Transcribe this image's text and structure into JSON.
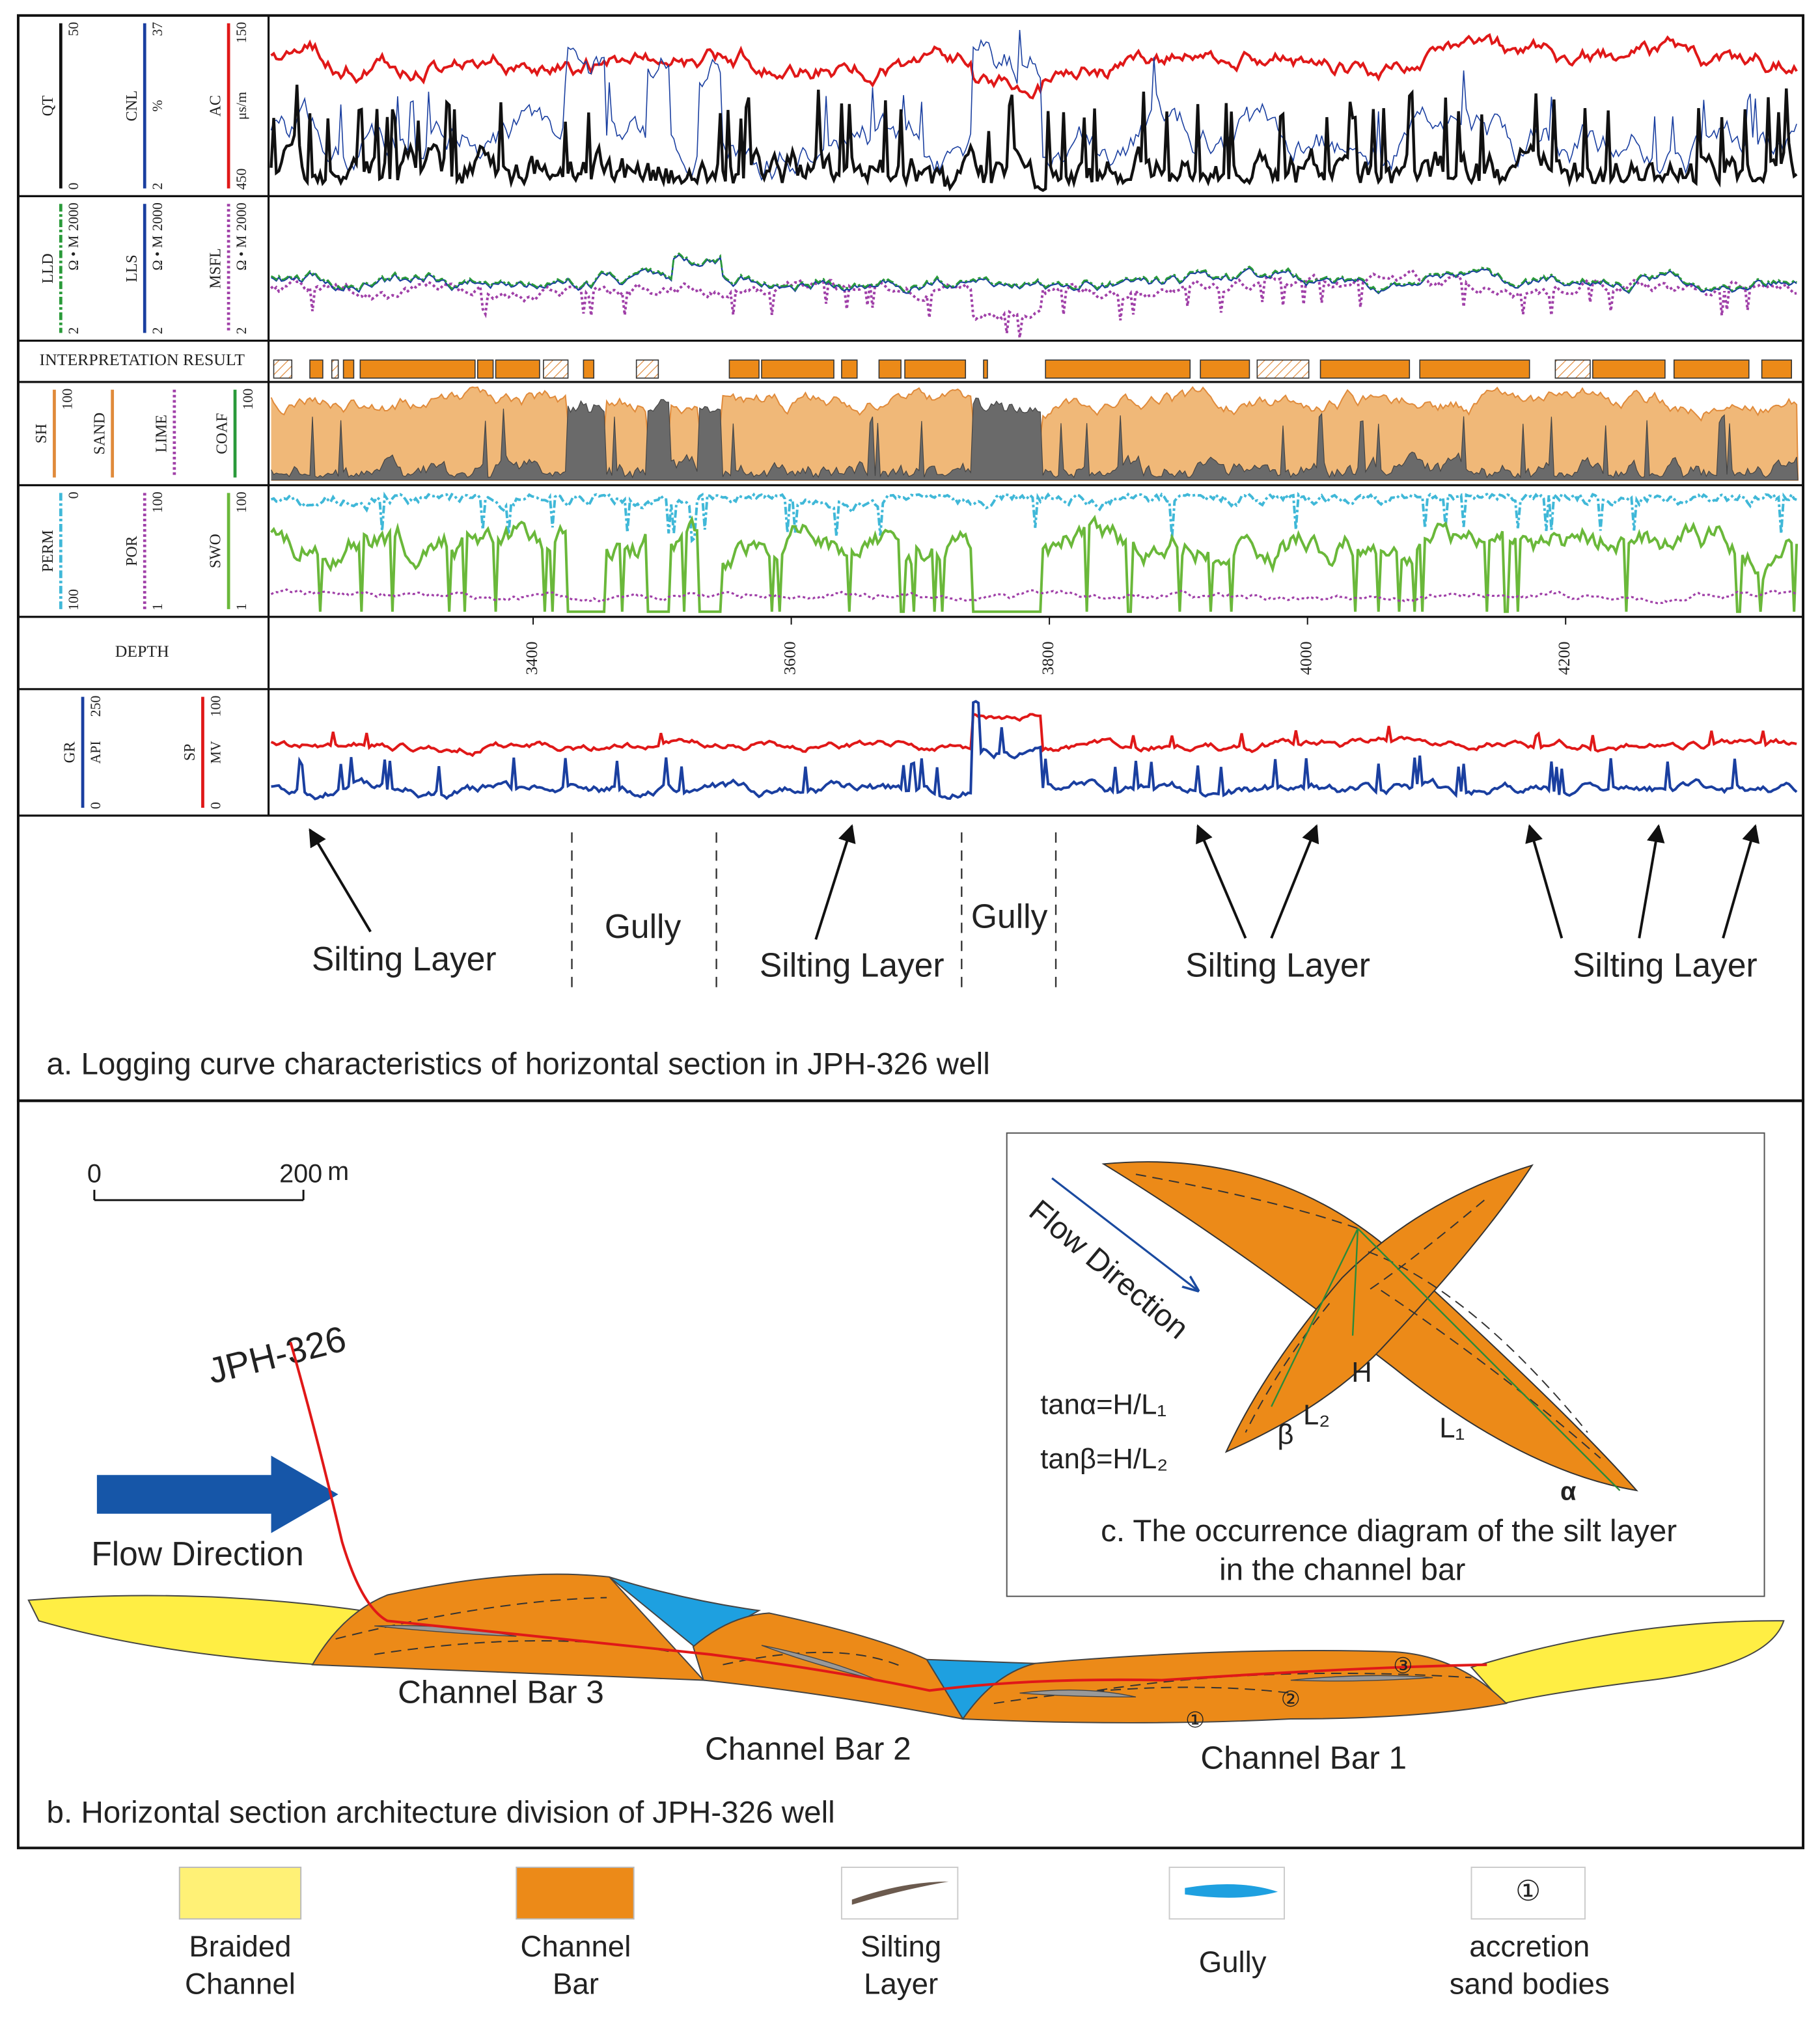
{
  "panel_a": {
    "tracks": [
      {
        "curves": [
          {
            "name": "QT",
            "top": "50",
            "bottom": "0"
          },
          {
            "name": "CNL",
            "unit": "%",
            "top": "37",
            "bottom": "2"
          },
          {
            "name": "AC",
            "unit": "μs/m",
            "top": "150",
            "bottom": "450"
          }
        ]
      },
      {
        "curves": [
          {
            "name": "LLD",
            "unit": "Ω • M",
            "top": "2000",
            "bottom": "2"
          },
          {
            "name": "LLS",
            "unit": "Ω • M",
            "top": "2000",
            "bottom": "2"
          },
          {
            "name": "MSFL",
            "unit": "Ω • M",
            "top": "2000",
            "bottom": "2"
          }
        ]
      },
      {
        "title": "INTERPRETATION RESULT"
      },
      {
        "curves": [
          {
            "name": "SH",
            "top": "100"
          },
          {
            "name": "SAND"
          },
          {
            "name": "LIME"
          },
          {
            "name": "COAF",
            "top": "100"
          }
        ]
      },
      {
        "curves": [
          {
            "name": "PERM",
            "top": "0",
            "bottom": "100"
          },
          {
            "name": "POR",
            "top": "100",
            "bottom": "1"
          },
          {
            "name": "SWO",
            "top": "100",
            "bottom": "1"
          }
        ]
      },
      {
        "title": "DEPTH",
        "ticks": [
          3400,
          3600,
          3800,
          4000,
          4200
        ]
      },
      {
        "curves": [
          {
            "name": "GR",
            "unit": "API",
            "top": "250",
            "bottom": "0"
          },
          {
            "name": "SP",
            "unit": "MV",
            "top": "100",
            "bottom": "0"
          }
        ]
      }
    ],
    "annotations": {
      "silting": [
        "Silting Layer",
        "Silting Layer",
        "Silting Layer",
        "Silting Layer"
      ],
      "gully": [
        "Gully",
        "Gully"
      ]
    },
    "caption": "a. Logging curve characteristics of horizontal section in JPH-326 well"
  },
  "panel_b": {
    "scale": {
      "start": "0",
      "end": "200",
      "unit": "m"
    },
    "well": "JPH-326",
    "flow": "Flow Direction",
    "bars": [
      "Channel Bar 3",
      "Channel Bar 2",
      "Channel Bar 1"
    ],
    "accretion": [
      "①",
      "②",
      "③"
    ],
    "caption": "b. Horizontal section architecture division of JPH-326 well"
  },
  "panel_c": {
    "flow": "Flow Direction",
    "formulas": [
      "tanα=H/L₁",
      "tanβ=H/L₂"
    ],
    "symbols": {
      "h": "H",
      "l2": "L₂",
      "l1": "L₁",
      "beta": "β",
      "alpha": "α"
    },
    "caption": [
      "c. The occurrence diagram of the silt layer",
      "in the channel bar"
    ]
  },
  "legend": [
    {
      "label": [
        "Braided",
        "Channel"
      ]
    },
    {
      "label": [
        "Channel",
        "Bar"
      ]
    },
    {
      "label": [
        "Silting",
        "Layer"
      ]
    },
    {
      "label": [
        "Gully"
      ]
    },
    {
      "symbol": "①",
      "label": [
        "accretion",
        "sand bodies"
      ]
    }
  ]
}
